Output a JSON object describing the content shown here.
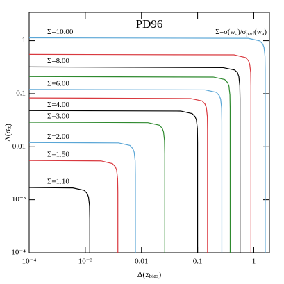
{
  "chart_data": {
    "type": "line",
    "title": "PD96",
    "formula": [
      "Σ=σ(w",
      "a",
      ")/σ",
      "perf",
      "(w",
      "a",
      ")"
    ],
    "xlabel": [
      "Δ(z",
      "bias",
      ")"
    ],
    "ylabel": [
      "Δ(σ",
      "z",
      ")"
    ],
    "log_x": true,
    "log_y": true,
    "xlim": [
      0.0001,
      1.9
    ],
    "ylim": [
      0.0001,
      3.4
    ],
    "xticks": [
      {
        "value": 0.0001,
        "label": "10⁻⁴"
      },
      {
        "value": 0.001,
        "label": "10⁻³"
      },
      0.01,
      0.1,
      1
    ],
    "yticks": [
      {
        "value": 0.0001,
        "label": "10⁻⁴"
      },
      {
        "value": 0.001,
        "label": "10⁻³"
      },
      0.01,
      0.1,
      1
    ],
    "series": [
      {
        "name": "Σ=10.00",
        "color": "#5aa6d6",
        "x": [
          0.0001,
          0.8,
          1.28,
          1.44,
          1.52,
          1.584,
          1.598,
          1.6
        ],
        "y": [
          1.13,
          1.11,
          0.99,
          0.87,
          0.75,
          0.51,
          0.28,
          0.0001
        ]
      },
      {
        "name": null,
        "color": "#d9393f",
        "x": [
          0.0001,
          0.445,
          0.712,
          0.801,
          0.846,
          0.881,
          0.889,
          0.89
        ],
        "y": [
          0.55,
          0.54,
          0.48,
          0.42,
          0.36,
          0.25,
          0.14,
          0.0001
        ]
      },
      {
        "name": "Σ=8.00",
        "color": "#000000",
        "x": [
          0.0001,
          0.285,
          0.456,
          0.513,
          0.542,
          0.564,
          0.569,
          0.57
        ],
        "y": [
          0.32,
          0.31,
          0.28,
          0.25,
          0.21,
          0.14,
          0.08,
          0.0001
        ]
      },
      {
        "name": null,
        "color": "#2f8a2f",
        "x": [
          0.0001,
          0.19,
          0.304,
          0.342,
          0.361,
          0.376,
          0.3796,
          0.38
        ],
        "y": [
          0.21,
          0.206,
          0.185,
          0.162,
          0.139,
          0.095,
          0.053,
          0.0001
        ]
      },
      {
        "name": "Σ=6.00",
        "color": "#5aa6d6",
        "x": [
          0.0001,
          0.135,
          0.216,
          0.243,
          0.257,
          0.267,
          0.2697,
          0.27
        ],
        "y": [
          0.12,
          0.118,
          0.106,
          0.092,
          0.079,
          0.054,
          0.03,
          0.0001
        ]
      },
      {
        "name": null,
        "color": "#d9393f",
        "x": [
          0.0001,
          0.075,
          0.12,
          0.135,
          0.143,
          0.149,
          0.1499,
          0.15
        ],
        "y": [
          0.083,
          0.081,
          0.073,
          0.064,
          0.055,
          0.037,
          0.021,
          0.0001
        ]
      },
      {
        "name": "Σ=4.00",
        "color": "#000000",
        "x": [
          0.0001,
          0.05,
          0.08,
          0.09,
          0.095,
          0.099,
          0.0999,
          0.1
        ],
        "y": [
          0.048,
          0.047,
          0.042,
          0.037,
          0.032,
          0.022,
          0.012,
          0.0001
        ]
      },
      {
        "name": "Σ=3.00",
        "color": "#2f8a2f",
        "x": [
          0.0001,
          0.013,
          0.0208,
          0.0234,
          0.0247,
          0.0257,
          0.02597,
          0.026
        ],
        "y": [
          0.029,
          0.0284,
          0.0255,
          0.0223,
          0.0191,
          0.013,
          0.0073,
          0.0001
        ]
      },
      {
        "name": "Σ=2.00",
        "color": "#5aa6d6",
        "x": [
          0.0001,
          0.0039,
          0.00624,
          0.00702,
          0.00741,
          0.00772,
          0.00779,
          0.0078
        ],
        "y": [
          0.012,
          0.0118,
          0.0106,
          0.0092,
          0.0079,
          0.0054,
          0.003,
          0.0001
        ]
      },
      {
        "name": "Σ=1.50",
        "color": "#d9393f",
        "x": [
          0.0001,
          0.0019,
          0.00304,
          0.00342,
          0.00361,
          0.00376,
          0.003796,
          0.0038
        ],
        "y": [
          0.0055,
          0.0054,
          0.0048,
          0.0042,
          0.0036,
          0.0025,
          0.0014,
          0.0001
        ]
      },
      {
        "name": "Σ=1.10",
        "color": "#000000",
        "x": [
          0.0001,
          0.0006,
          0.00096,
          0.00108,
          0.00114,
          0.001188,
          0.0011988,
          0.0012
        ],
        "y": [
          0.0017,
          0.00167,
          0.0015,
          0.00131,
          0.00112,
          0.00077,
          0.00043,
          0.0001
        ]
      }
    ]
  }
}
